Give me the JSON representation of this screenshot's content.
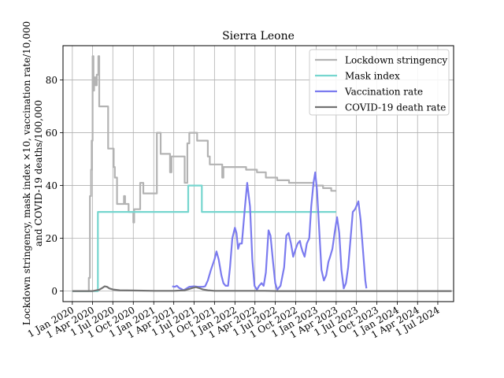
{
  "chart_data": {
    "type": "line",
    "title": "Sierra Leone",
    "xlabel": "",
    "ylabel_lines": [
      "Lockdown stringency, mask index ×10, vaccination rate/10,000",
      "and COVID-19 deaths/100,000"
    ],
    "x_ticks": [
      "2020-01-01",
      "2020-04-01",
      "2020-07-01",
      "2020-10-01",
      "2021-01-01",
      "2021-04-01",
      "2021-07-01",
      "2021-10-01",
      "2022-01-01",
      "2022-04-01",
      "2022-07-01",
      "2022-10-01",
      "2023-01-01",
      "2023-04-01",
      "2023-07-01",
      "2023-10-01",
      "2024-01-01",
      "2024-04-01",
      "2024-07-01"
    ],
    "x_tick_labels": [
      "1 Jan 2020",
      "1 Apr 2020",
      "1 Jul 2020",
      "1 Oct 2020",
      "1 Jan 2021",
      "1 Apr 2021",
      "1 Jul 2021",
      "1 Oct 2021",
      "1 Jan 2022",
      "1 Apr 2022",
      "1 Jul 2022",
      "1 Oct 2022",
      "1 Jan 2023",
      "1 Apr 2023",
      "1 Jul 2023",
      "1 Oct 2023",
      "1 Jan 2024",
      "1 Apr 2024",
      "1 Jul 2024"
    ],
    "xlim": [
      "2019-11-20",
      "2024-09-10"
    ],
    "y_ticks": [
      0,
      20,
      40,
      60,
      80
    ],
    "ylim": [
      -4,
      93
    ],
    "grid": true,
    "legend_position": "top-right",
    "series": [
      {
        "name": "Lockdown stringency",
        "color": "#b3b3b3",
        "points": [
          [
            "2020-01-01",
            0
          ],
          [
            "2020-03-15",
            0
          ],
          [
            "2020-03-15",
            5
          ],
          [
            "2020-03-20",
            5
          ],
          [
            "2020-03-20",
            36
          ],
          [
            "2020-03-25",
            36
          ],
          [
            "2020-03-25",
            46
          ],
          [
            "2020-03-28",
            46
          ],
          [
            "2020-03-28",
            57
          ],
          [
            "2020-04-01",
            57
          ],
          [
            "2020-04-01",
            89
          ],
          [
            "2020-04-05",
            89
          ],
          [
            "2020-04-05",
            76
          ],
          [
            "2020-04-08",
            76
          ],
          [
            "2020-04-08",
            81
          ],
          [
            "2020-04-15",
            81
          ],
          [
            "2020-04-15",
            78
          ],
          [
            "2020-04-20",
            78
          ],
          [
            "2020-04-20",
            82
          ],
          [
            "2020-04-27",
            82
          ],
          [
            "2020-04-27",
            89
          ],
          [
            "2020-05-01",
            89
          ],
          [
            "2020-05-01",
            70
          ],
          [
            "2020-06-10",
            70
          ],
          [
            "2020-06-10",
            54
          ],
          [
            "2020-07-05",
            54
          ],
          [
            "2020-07-05",
            47
          ],
          [
            "2020-07-10",
            47
          ],
          [
            "2020-07-10",
            43
          ],
          [
            "2020-07-20",
            43
          ],
          [
            "2020-07-20",
            33
          ],
          [
            "2020-08-20",
            33
          ],
          [
            "2020-08-20",
            36
          ],
          [
            "2020-08-25",
            36
          ],
          [
            "2020-08-25",
            33
          ],
          [
            "2020-09-10",
            33
          ],
          [
            "2020-09-10",
            30
          ],
          [
            "2020-10-01",
            30
          ],
          [
            "2020-10-01",
            26
          ],
          [
            "2020-10-05",
            26
          ],
          [
            "2020-10-05",
            31
          ],
          [
            "2020-11-01",
            31
          ],
          [
            "2020-11-01",
            41
          ],
          [
            "2020-11-15",
            41
          ],
          [
            "2020-11-15",
            37
          ],
          [
            "2021-01-15",
            37
          ],
          [
            "2021-01-15",
            60
          ],
          [
            "2021-02-01",
            60
          ],
          [
            "2021-02-01",
            52
          ],
          [
            "2021-03-15",
            52
          ],
          [
            "2021-03-15",
            45
          ],
          [
            "2021-03-22",
            45
          ],
          [
            "2021-03-22",
            51
          ],
          [
            "2021-05-20",
            51
          ],
          [
            "2021-05-20",
            41
          ],
          [
            "2021-06-01",
            41
          ],
          [
            "2021-06-01",
            56
          ],
          [
            "2021-06-10",
            56
          ],
          [
            "2021-06-10",
            60
          ],
          [
            "2021-07-15",
            60
          ],
          [
            "2021-07-15",
            57
          ],
          [
            "2021-09-01",
            57
          ],
          [
            "2021-09-01",
            51
          ],
          [
            "2021-09-10",
            51
          ],
          [
            "2021-09-10",
            48
          ],
          [
            "2021-11-05",
            48
          ],
          [
            "2021-11-05",
            43
          ],
          [
            "2021-11-10",
            43
          ],
          [
            "2021-11-10",
            47
          ],
          [
            "2022-02-20",
            47
          ],
          [
            "2022-02-20",
            46
          ],
          [
            "2022-04-10",
            46
          ],
          [
            "2022-04-10",
            45
          ],
          [
            "2022-05-20",
            45
          ],
          [
            "2022-05-20",
            43
          ],
          [
            "2022-07-10",
            43
          ],
          [
            "2022-07-10",
            42
          ],
          [
            "2022-09-01",
            42
          ],
          [
            "2022-09-01",
            41
          ],
          [
            "2022-12-20",
            41
          ],
          [
            "2022-12-20",
            40
          ],
          [
            "2023-02-01",
            40
          ],
          [
            "2023-02-01",
            39
          ],
          [
            "2023-03-10",
            39
          ],
          [
            "2023-03-10",
            38
          ],
          [
            "2023-04-01",
            38
          ]
        ]
      },
      {
        "name": "Mask index",
        "color": "#76d6cf",
        "points": [
          [
            "2020-01-01",
            0
          ],
          [
            "2020-04-25",
            0
          ],
          [
            "2020-04-25",
            30
          ],
          [
            "2021-06-05",
            30
          ],
          [
            "2021-06-05",
            40
          ],
          [
            "2021-08-05",
            40
          ],
          [
            "2021-08-05",
            30
          ],
          [
            "2023-04-01",
            30
          ]
        ]
      },
      {
        "name": "Vaccination rate",
        "color": "#7b7bef",
        "points": [
          [
            "2021-03-25",
            1.8
          ],
          [
            "2021-04-05",
            1.6
          ],
          [
            "2021-04-15",
            2
          ],
          [
            "2021-04-25",
            1.2
          ],
          [
            "2021-05-05",
            0.8
          ],
          [
            "2021-05-15",
            0.3
          ],
          [
            "2021-05-25",
            0.8
          ],
          [
            "2021-06-10",
            1.6
          ],
          [
            "2021-07-01",
            1.8
          ],
          [
            "2021-07-20",
            1.6
          ],
          [
            "2021-08-10",
            1.6
          ],
          [
            "2021-08-20",
            1.8
          ],
          [
            "2021-09-01",
            4
          ],
          [
            "2021-09-15",
            8
          ],
          [
            "2021-10-01",
            12
          ],
          [
            "2021-10-10",
            15
          ],
          [
            "2021-10-20",
            12
          ],
          [
            "2021-11-01",
            6
          ],
          [
            "2021-11-10",
            3
          ],
          [
            "2021-11-20",
            2
          ],
          [
            "2021-12-01",
            2
          ],
          [
            "2021-12-10",
            9
          ],
          [
            "2021-12-20",
            20
          ],
          [
            "2022-01-01",
            24
          ],
          [
            "2022-01-08",
            22
          ],
          [
            "2022-01-15",
            16
          ],
          [
            "2022-01-22",
            18
          ],
          [
            "2022-02-01",
            18
          ],
          [
            "2022-02-15",
            32
          ],
          [
            "2022-02-25",
            41
          ],
          [
            "2022-03-10",
            32
          ],
          [
            "2022-03-20",
            12
          ],
          [
            "2022-03-30",
            2
          ],
          [
            "2022-04-10",
            0.5
          ],
          [
            "2022-04-20",
            2
          ],
          [
            "2022-05-01",
            3
          ],
          [
            "2022-05-10",
            2
          ],
          [
            "2022-05-20",
            7
          ],
          [
            "2022-06-01",
            23
          ],
          [
            "2022-06-10",
            21
          ],
          [
            "2022-06-20",
            12
          ],
          [
            "2022-07-01",
            3
          ],
          [
            "2022-07-10",
            0.5
          ],
          [
            "2022-07-25",
            2
          ],
          [
            "2022-08-10",
            9
          ],
          [
            "2022-08-20",
            21
          ],
          [
            "2022-08-30",
            22
          ],
          [
            "2022-09-10",
            18
          ],
          [
            "2022-09-20",
            13
          ],
          [
            "2022-10-01",
            16
          ],
          [
            "2022-10-10",
            18
          ],
          [
            "2022-10-20",
            19
          ],
          [
            "2022-10-25",
            17
          ],
          [
            "2022-11-01",
            15
          ],
          [
            "2022-11-10",
            13
          ],
          [
            "2022-11-20",
            18
          ],
          [
            "2022-12-01",
            20
          ],
          [
            "2022-12-10",
            32
          ],
          [
            "2022-12-20",
            41
          ],
          [
            "2022-12-28",
            45
          ],
          [
            "2023-01-05",
            38
          ],
          [
            "2023-01-15",
            23
          ],
          [
            "2023-01-25",
            8
          ],
          [
            "2023-02-05",
            4
          ],
          [
            "2023-02-15",
            6
          ],
          [
            "2023-02-25",
            11
          ],
          [
            "2023-03-05",
            13
          ],
          [
            "2023-03-15",
            16
          ],
          [
            "2023-03-25",
            22
          ],
          [
            "2023-04-05",
            28
          ],
          [
            "2023-04-15",
            22
          ],
          [
            "2023-04-25",
            8
          ],
          [
            "2023-05-05",
            1
          ],
          [
            "2023-05-15",
            3
          ],
          [
            "2023-05-25",
            9
          ],
          [
            "2023-06-05",
            20
          ],
          [
            "2023-06-15",
            30
          ],
          [
            "2023-06-25",
            31
          ],
          [
            "2023-07-05",
            33
          ],
          [
            "2023-07-10",
            34
          ],
          [
            "2023-07-20",
            27
          ],
          [
            "2023-08-01",
            14
          ],
          [
            "2023-08-10",
            4
          ],
          [
            "2023-08-15",
            1
          ]
        ]
      },
      {
        "name": "COVID-19 death rate",
        "color": "#737373",
        "points": [
          [
            "2020-01-01",
            0
          ],
          [
            "2020-04-01",
            0
          ],
          [
            "2020-05-01",
            0.5
          ],
          [
            "2020-05-15",
            1.2
          ],
          [
            "2020-05-25",
            1.8
          ],
          [
            "2020-06-05",
            1.6
          ],
          [
            "2020-06-15",
            1
          ],
          [
            "2020-07-01",
            0.6
          ],
          [
            "2020-08-01",
            0.3
          ],
          [
            "2020-10-01",
            0.2
          ],
          [
            "2021-01-01",
            0.1
          ],
          [
            "2021-04-01",
            0.1
          ],
          [
            "2021-05-20",
            0.3
          ],
          [
            "2021-06-10",
            0.8
          ],
          [
            "2021-06-25",
            1.2
          ],
          [
            "2021-07-10",
            1.5
          ],
          [
            "2021-07-25",
            1.1
          ],
          [
            "2021-08-10",
            0.6
          ],
          [
            "2021-09-01",
            0.3
          ],
          [
            "2021-10-01",
            0.1
          ],
          [
            "2022-01-01",
            0.1
          ],
          [
            "2022-05-15",
            0.1
          ],
          [
            "2022-07-15",
            0
          ],
          [
            "2024-09-01",
            0
          ]
        ]
      }
    ]
  }
}
